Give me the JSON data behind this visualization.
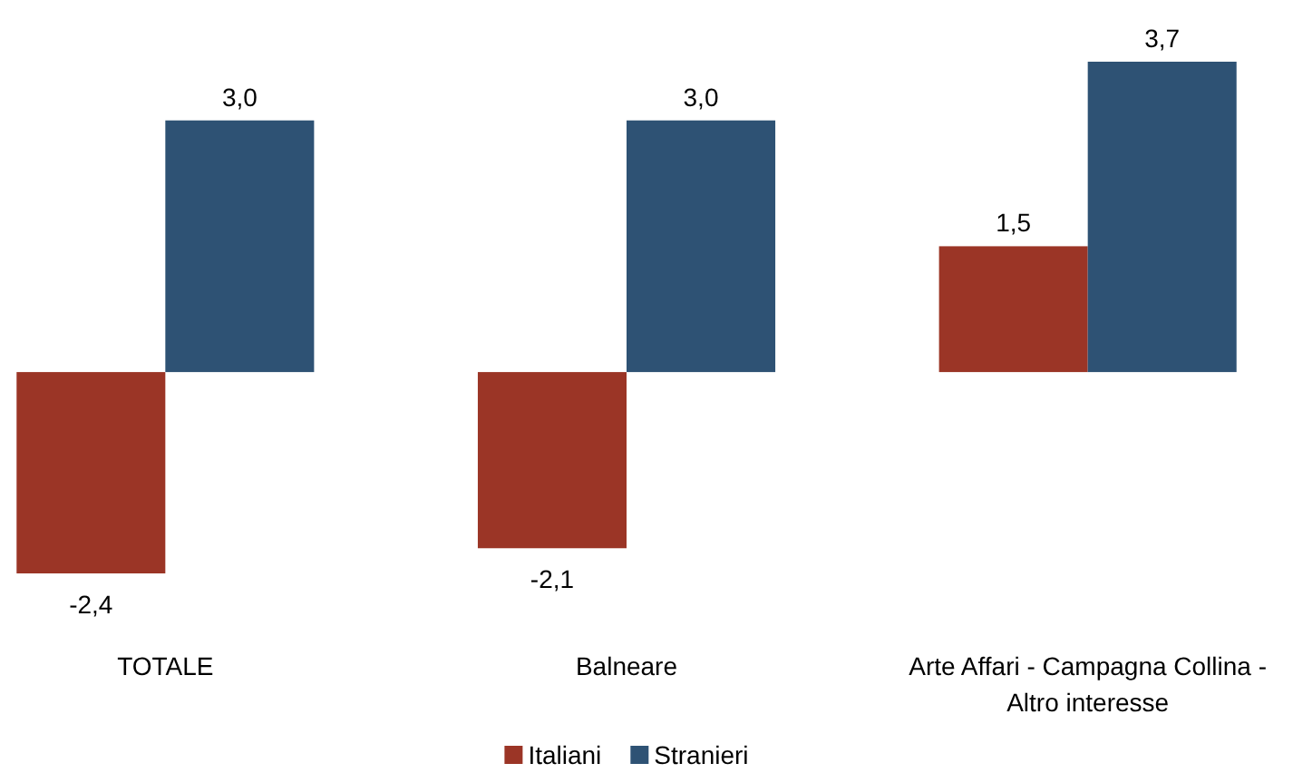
{
  "chart_data": {
    "type": "bar",
    "categories": [
      "TOTALE",
      "Balneare",
      "Arte Affari - Campagna Collina - Altro interesse"
    ],
    "series": [
      {
        "name": "Italiani",
        "color": "#9b3526",
        "values": [
          -2.4,
          -2.1,
          1.5
        ],
        "value_labels": [
          "-2,4",
          "-2,1",
          "1,5"
        ]
      },
      {
        "name": "Stranieri",
        "color": "#2e5274",
        "values": [
          3.0,
          3.0,
          3.7
        ],
        "value_labels": [
          "3,0",
          "3,0",
          "3,7"
        ]
      }
    ],
    "tick_labels": "x",
    "legend": "bottom"
  }
}
